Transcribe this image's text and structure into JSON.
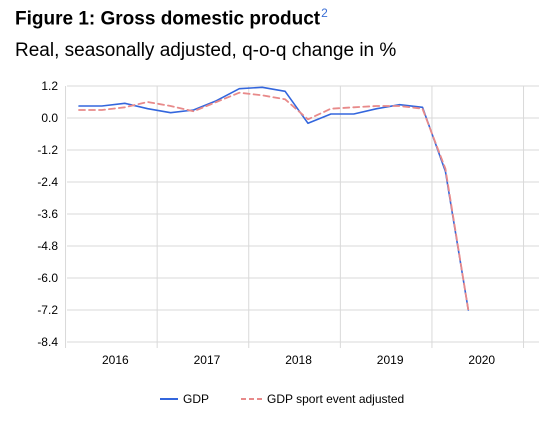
{
  "figure": {
    "title": "Figure 1:  Gross domestic product",
    "footnote": "2",
    "subtitle": "Real, seasonally adjusted, q-o-q change in %"
  },
  "chart_data": {
    "type": "line",
    "title": "Figure 1:  Gross domestic product",
    "subtitle": "Real, seasonally adjusted, q-o-q change in %",
    "xlabel": "",
    "ylabel": "",
    "ylim": [
      -8.4,
      1.2
    ],
    "y_ticks": [
      "1.2",
      "0.0",
      "-1.2",
      "-2.4",
      "-3.6",
      "-4.8",
      "-6.0",
      "-7.2",
      "-8.4"
    ],
    "x_years": [
      "2016",
      "2017",
      "2018",
      "2019",
      "2020"
    ],
    "x": [
      "2016 Q1",
      "2016 Q2",
      "2016 Q3",
      "2016 Q4",
      "2017 Q1",
      "2017 Q2",
      "2017 Q3",
      "2017 Q4",
      "2018 Q1",
      "2018 Q2",
      "2018 Q3",
      "2018 Q4",
      "2019 Q1",
      "2019 Q2",
      "2019 Q3",
      "2019 Q4",
      "2020 Q1",
      "2020 Q2"
    ],
    "grid": true,
    "legend_position": "bottom",
    "series": [
      {
        "name": "GDP",
        "color": "#3366dd",
        "style": "solid",
        "values": [
          0.45,
          0.45,
          0.55,
          0.35,
          0.2,
          0.3,
          0.65,
          1.1,
          1.15,
          1.0,
          -0.2,
          0.15,
          0.15,
          0.35,
          0.5,
          0.4,
          -2.0,
          -7.2
        ]
      },
      {
        "name": "GDP sport event adjusted",
        "color": "#e88a8a",
        "style": "dashed",
        "values": [
          0.3,
          0.3,
          0.4,
          0.6,
          0.45,
          0.25,
          0.6,
          0.95,
          0.85,
          0.7,
          -0.05,
          0.35,
          0.4,
          0.45,
          0.45,
          0.35,
          -1.9,
          -7.2
        ]
      }
    ]
  }
}
